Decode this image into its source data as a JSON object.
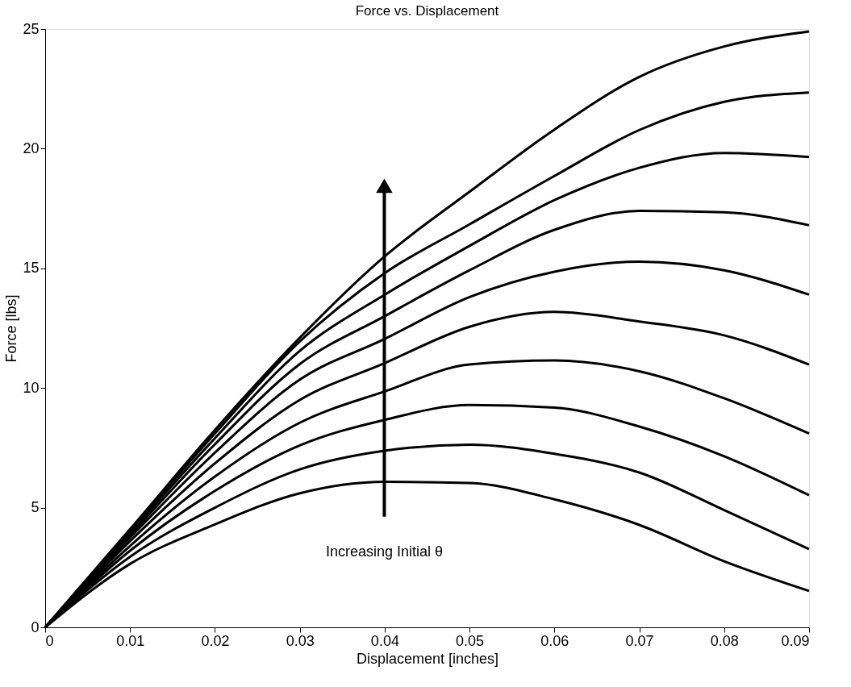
{
  "chart_data": {
    "type": "line",
    "title": "Force vs. Displacement",
    "xlabel": "Displacement [inches]",
    "ylabel": "Force [lbs]",
    "x": [
      0,
      0.01,
      0.02,
      0.03,
      0.04,
      0.05,
      0.06,
      0.07,
      0.08,
      0.09
    ],
    "series": [
      {
        "color": "#000000",
        "values": [
          0,
          2.65,
          4.3,
          5.6,
          6.08,
          6.03,
          5.35,
          4.28,
          2.76,
          1.52
        ]
      },
      {
        "color": "#000000",
        "values": [
          0,
          2.95,
          5.0,
          6.6,
          7.38,
          7.63,
          7.25,
          6.47,
          4.9,
          3.27
        ]
      },
      {
        "color": "#000000",
        "values": [
          0,
          3.2,
          5.7,
          7.6,
          8.67,
          9.29,
          9.18,
          8.39,
          7.15,
          5.52
        ]
      },
      {
        "color": "#000000",
        "values": [
          0,
          3.4,
          6.3,
          8.55,
          9.86,
          10.98,
          11.15,
          10.7,
          9.57,
          8.1
        ]
      },
      {
        "color": "#000000",
        "values": [
          0,
          3.6,
          6.85,
          9.5,
          11.04,
          12.56,
          13.18,
          12.78,
          12.2,
          10.98
        ]
      },
      {
        "color": "#000000",
        "values": [
          0,
          3.75,
          7.3,
          10.35,
          12.05,
          13.8,
          14.86,
          15.28,
          14.92,
          13.9
        ]
      },
      {
        "color": "#000000",
        "values": [
          0,
          3.85,
          7.65,
          11.0,
          13.0,
          14.92,
          16.61,
          17.4,
          17.34,
          16.8
        ]
      },
      {
        "color": "#000000",
        "values": [
          0,
          3.95,
          7.9,
          11.55,
          13.9,
          15.94,
          17.85,
          19.2,
          19.82,
          19.65
        ]
      },
      {
        "color": "#000000",
        "values": [
          0,
          4.05,
          8.1,
          11.95,
          14.8,
          16.84,
          18.86,
          20.78,
          21.96,
          22.35
        ]
      },
      {
        "color": "#000000",
        "values": [
          0,
          4.1,
          8.25,
          12.1,
          15.5,
          18.2,
          20.8,
          23.0,
          24.27,
          24.9
        ]
      }
    ],
    "annotations": [
      "Increasing Initial θ"
    ],
    "xlim": [
      0,
      0.09
    ],
    "xticks": [
      0,
      0.01,
      0.02,
      0.03,
      0.04,
      0.05,
      0.06,
      0.07,
      0.08,
      0.09
    ],
    "ylim": [
      0,
      25
    ],
    "yticks": [
      0,
      5,
      10,
      15,
      20,
      25
    ],
    "grid": false,
    "legend": false,
    "marker": "none",
    "line_style": "solid"
  }
}
